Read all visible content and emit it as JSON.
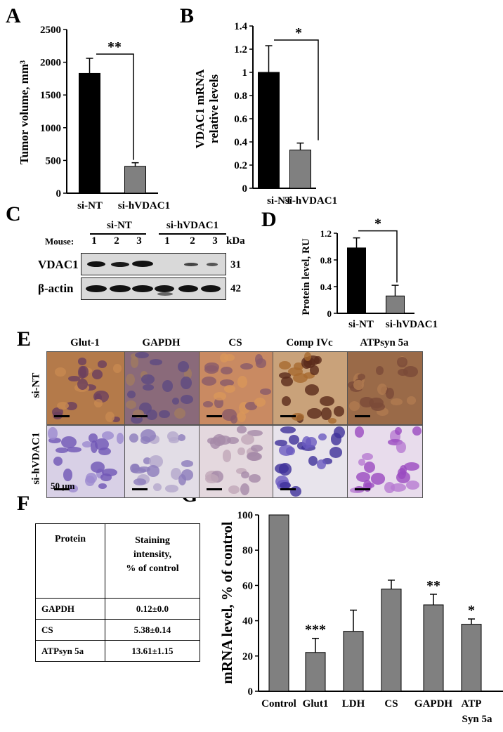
{
  "panels": {
    "A": "A",
    "B": "B",
    "C": "C",
    "D": "D",
    "E": "E",
    "F": "F",
    "G": "G"
  },
  "chart_data": [
    {
      "id": "A",
      "type": "bar",
      "categories": [
        "si-NT",
        "si-hVDAC1"
      ],
      "values": [
        1830,
        410
      ],
      "errors": [
        230,
        55
      ],
      "ylabel": "Tumor volume, mm³",
      "ylim": [
        0,
        2500
      ],
      "yticks": [
        0,
        500,
        1000,
        1500,
        2000,
        2500
      ],
      "significance": "**",
      "colors": [
        "#000000",
        "#808080"
      ]
    },
    {
      "id": "B",
      "type": "bar",
      "categories": [
        "si-NT",
        "si-hVDAC1"
      ],
      "values": [
        1.0,
        0.33
      ],
      "errors": [
        0.23,
        0.06
      ],
      "ylabel_line1": "VDAC1 mRNA",
      "ylabel_line2": "relative  levels",
      "ylim": [
        0,
        1.4
      ],
      "yticks": [
        "0",
        "0.2",
        "0.4",
        "0.6",
        "0.8",
        "1",
        "1.2",
        "1.4"
      ],
      "significance": "*",
      "colors": [
        "#000000",
        "#808080"
      ]
    },
    {
      "id": "D",
      "type": "bar",
      "categories": [
        "si-NT",
        "si-hVDAC1"
      ],
      "values": [
        0.98,
        0.26
      ],
      "errors": [
        0.15,
        0.16
      ],
      "ylabel": "Protein level, RU",
      "ylim": [
        0,
        1.2
      ],
      "yticks": [
        "0",
        "0.4",
        "0.8",
        "1.2"
      ],
      "significance": "*",
      "colors": [
        "#000000",
        "#808080"
      ]
    },
    {
      "id": "G",
      "type": "bar",
      "categories": [
        "Control",
        "Glut1",
        "LDH",
        "CS",
        "GAPDH",
        "ATP"
      ],
      "category_sublabel": "Syn 5a",
      "values": [
        100,
        22,
        34,
        58,
        49,
        38
      ],
      "errors": [
        0,
        8,
        12,
        5,
        6,
        3
      ],
      "significance": [
        "",
        "***",
        "",
        "",
        "**",
        "*"
      ],
      "ylabel": "mRNA level, % of control",
      "ylim": [
        0,
        100
      ],
      "yticks": [
        0,
        20,
        40,
        60,
        80,
        100
      ],
      "colors": [
        "#808080"
      ]
    }
  ],
  "blot": {
    "group1": "si-NT",
    "group2": "si-hVDAC1",
    "mouse_label": "Mouse:",
    "lanes": [
      "1",
      "2",
      "3",
      "1",
      "2",
      "3"
    ],
    "kda_label": "kDa",
    "rows": [
      {
        "label": "VDAC1",
        "kda": "31"
      },
      {
        "label": "β-actin",
        "kda": "42"
      }
    ]
  },
  "ihc": {
    "columns": [
      "Glut-1",
      "GAPDH",
      "CS",
      "Comp IVc",
      "ATPsyn 5a"
    ],
    "rows": [
      "si-NT",
      "si-hVDAC1"
    ],
    "scale_label": "50 μm"
  },
  "table": {
    "headers": [
      "Protein",
      "Staining intensity, % of control"
    ],
    "header2_lines": [
      "Staining",
      "intensity,",
      "% of control"
    ],
    "rows": [
      [
        "GAPDH",
        "0.12±0.0"
      ],
      [
        "CS",
        "5.38±0.14"
      ],
      [
        "ATPsyn 5a",
        "13.61±1.15"
      ]
    ]
  }
}
